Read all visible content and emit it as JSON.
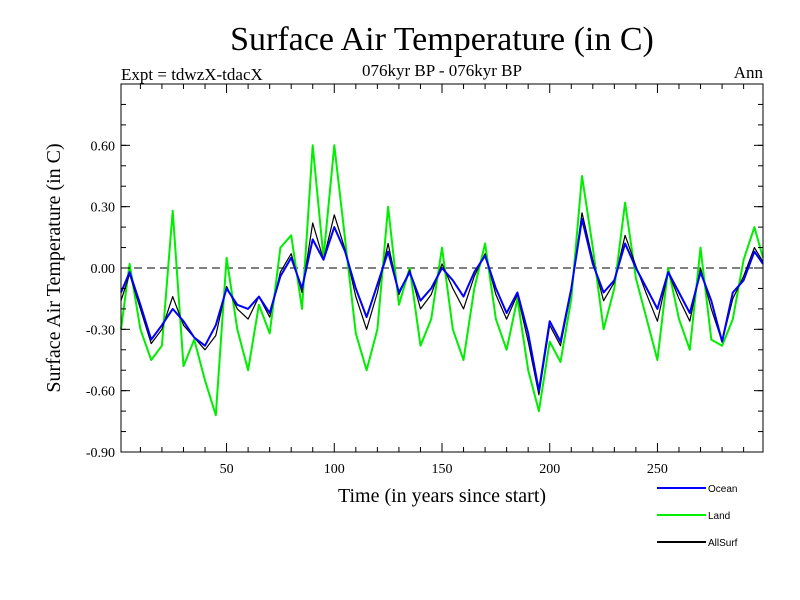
{
  "chart_data": {
    "type": "line",
    "title": "Surface Air Temperature (in C)",
    "subtitle": "076kyr BP - 076kyr BP",
    "left_label": "Expt = tdwzX-tdacX",
    "right_label": "Ann",
    "xlabel": "Time (in years since start)",
    "ylabel": "Surface Air Temperature (in C)",
    "xlim": [
      1,
      299
    ],
    "ylim": [
      -0.9,
      0.9
    ],
    "x_ticks": [
      50,
      100,
      150,
      200,
      250
    ],
    "y_ticks": [
      -0.9,
      -0.6,
      -0.3,
      0.0,
      0.3,
      0.6
    ],
    "y_tick_labels": [
      "-0.90",
      "-0.60",
      "-0.30",
      "0.00",
      "0.30",
      "0.60"
    ],
    "zero_line": "dashed",
    "legend_position": "bottom-right",
    "series": [
      {
        "name": "Ocean",
        "color": "#0000ff",
        "x": [
          1,
          5,
          10,
          15,
          20,
          25,
          30,
          35,
          40,
          45,
          50,
          55,
          60,
          65,
          70,
          75,
          80,
          85,
          90,
          95,
          100,
          105,
          110,
          115,
          120,
          125,
          130,
          135,
          140,
          145,
          150,
          155,
          160,
          165,
          170,
          175,
          180,
          185,
          190,
          195,
          200,
          205,
          210,
          215,
          220,
          225,
          230,
          235,
          240,
          245,
          250,
          255,
          260,
          265,
          270,
          275,
          280,
          285,
          290,
          295,
          299
        ],
        "values": [
          -0.12,
          -0.02,
          -0.18,
          -0.35,
          -0.28,
          -0.2,
          -0.26,
          -0.34,
          -0.38,
          -0.28,
          -0.1,
          -0.18,
          -0.2,
          -0.14,
          -0.22,
          -0.04,
          0.05,
          -0.1,
          0.14,
          0.04,
          0.2,
          0.08,
          -0.1,
          -0.24,
          -0.08,
          0.08,
          -0.12,
          -0.02,
          -0.16,
          -0.1,
          0.0,
          -0.06,
          -0.14,
          -0.02,
          0.06,
          -0.1,
          -0.22,
          -0.12,
          -0.32,
          -0.6,
          -0.26,
          -0.36,
          -0.1,
          0.24,
          0.02,
          -0.12,
          -0.06,
          0.12,
          0.0,
          -0.1,
          -0.2,
          -0.02,
          -0.12,
          -0.22,
          -0.02,
          -0.16,
          -0.36,
          -0.12,
          -0.06,
          0.08,
          0.02
        ]
      },
      {
        "name": "Land",
        "color": "#00ee00",
        "x": [
          1,
          5,
          10,
          15,
          20,
          25,
          30,
          35,
          40,
          45,
          50,
          55,
          60,
          65,
          70,
          75,
          80,
          85,
          90,
          95,
          100,
          105,
          110,
          115,
          120,
          125,
          130,
          135,
          140,
          145,
          150,
          155,
          160,
          165,
          170,
          175,
          180,
          185,
          190,
          195,
          200,
          205,
          210,
          215,
          220,
          225,
          230,
          235,
          240,
          245,
          250,
          255,
          260,
          265,
          270,
          275,
          280,
          285,
          290,
          295,
          299
        ],
        "values": [
          -0.3,
          0.02,
          -0.3,
          -0.45,
          -0.38,
          0.28,
          -0.48,
          -0.35,
          -0.55,
          -0.72,
          0.05,
          -0.3,
          -0.5,
          -0.18,
          -0.32,
          0.1,
          0.16,
          -0.2,
          0.6,
          0.05,
          0.6,
          0.14,
          -0.32,
          -0.5,
          -0.3,
          0.3,
          -0.18,
          0.0,
          -0.38,
          -0.25,
          0.1,
          -0.3,
          -0.45,
          -0.1,
          0.12,
          -0.25,
          -0.4,
          -0.15,
          -0.5,
          -0.7,
          -0.36,
          -0.46,
          -0.15,
          0.45,
          0.1,
          -0.3,
          -0.1,
          0.32,
          -0.05,
          -0.25,
          -0.45,
          0.0,
          -0.25,
          -0.4,
          0.1,
          -0.35,
          -0.38,
          -0.25,
          0.04,
          0.2,
          0.05
        ]
      },
      {
        "name": "AllSurf",
        "color": "#000000",
        "x": [
          1,
          5,
          10,
          15,
          20,
          25,
          30,
          35,
          40,
          45,
          50,
          55,
          60,
          65,
          70,
          75,
          80,
          85,
          90,
          95,
          100,
          105,
          110,
          115,
          120,
          125,
          130,
          135,
          140,
          145,
          150,
          155,
          160,
          165,
          170,
          175,
          180,
          185,
          190,
          195,
          200,
          205,
          210,
          215,
          220,
          225,
          230,
          235,
          240,
          245,
          250,
          255,
          260,
          265,
          270,
          275,
          280,
          285,
          290,
          295,
          299
        ],
        "values": [
          -0.16,
          -0.03,
          -0.2,
          -0.37,
          -0.3,
          -0.14,
          -0.28,
          -0.34,
          -0.4,
          -0.33,
          -0.09,
          -0.2,
          -0.25,
          -0.14,
          -0.24,
          -0.02,
          0.07,
          -0.12,
          0.22,
          0.04,
          0.26,
          0.09,
          -0.14,
          -0.3,
          -0.12,
          0.12,
          -0.13,
          -0.01,
          -0.2,
          -0.13,
          0.02,
          -0.1,
          -0.2,
          -0.04,
          0.07,
          -0.13,
          -0.25,
          -0.13,
          -0.36,
          -0.62,
          -0.28,
          -0.38,
          -0.11,
          0.27,
          0.04,
          -0.16,
          -0.07,
          0.16,
          0.01,
          -0.13,
          -0.26,
          -0.02,
          -0.15,
          -0.26,
          0.0,
          -0.2,
          -0.36,
          -0.15,
          -0.04,
          0.1,
          0.03
        ]
      }
    ]
  }
}
